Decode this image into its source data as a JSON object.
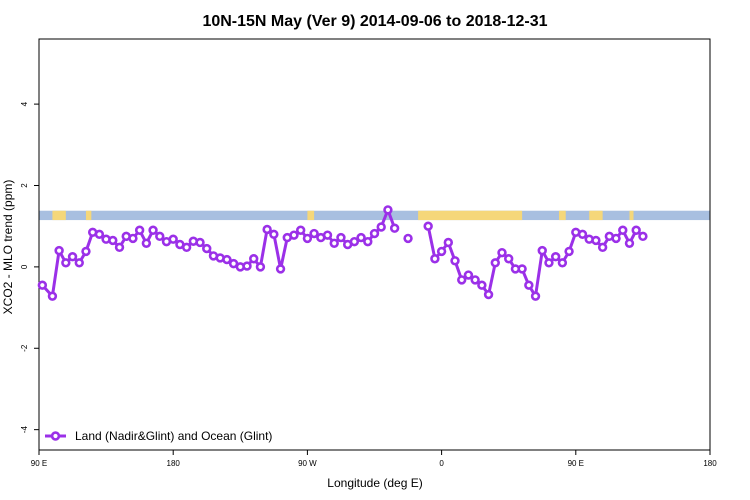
{
  "chart_data": {
    "type": "line",
    "title": "10N-15N May (Ver 9)   2014-09-06 to 2018-12-31",
    "xlabel": "Longitude (deg E)",
    "ylabel": "XCO2 - MLO trend (ppm)",
    "xlim": [
      0,
      100
    ],
    "ylim": [
      -4.5,
      5.6
    ],
    "x_ticks": [
      {
        "pos": 0,
        "label": "90 E"
      },
      {
        "pos": 20,
        "label": "180"
      },
      {
        "pos": 40,
        "label": "90 W"
      },
      {
        "pos": 60,
        "label": "0"
      },
      {
        "pos": 80,
        "label": "90 E"
      },
      {
        "pos": 100,
        "label": "180"
      }
    ],
    "y_ticks": [
      -4,
      -2,
      0,
      2,
      4
    ],
    "grid": false,
    "legend_position": "bottom-left",
    "land_band": {
      "y_range": [
        1.15,
        1.38
      ],
      "ocean_color": "#a8bfe0",
      "land_color": "#f5d77a",
      "land_segments": [
        [
          2.0,
          4.0
        ],
        [
          7.0,
          7.8
        ],
        [
          40.0,
          41.0
        ],
        [
          56.5,
          72.0
        ],
        [
          77.5,
          78.5
        ],
        [
          82.0,
          84.0
        ],
        [
          88.0,
          88.6
        ]
      ]
    },
    "series": [
      {
        "name": "Land (Nadir&Glint) and Ocean (Glint)",
        "color": "#9b30e8",
        "points": [
          [
            0.5,
            -0.45
          ],
          [
            2.0,
            -0.72
          ],
          [
            3.0,
            0.4
          ],
          [
            4.0,
            0.1
          ],
          [
            5.0,
            0.25
          ],
          [
            6.0,
            0.1
          ],
          [
            7.0,
            0.38
          ],
          [
            8.0,
            0.85
          ],
          [
            9.0,
            0.8
          ],
          [
            10.0,
            0.68
          ],
          [
            11.0,
            0.65
          ],
          [
            12.0,
            0.48
          ],
          [
            13.0,
            0.75
          ],
          [
            14.0,
            0.7
          ],
          [
            15.0,
            0.9
          ],
          [
            16.0,
            0.58
          ],
          [
            17.0,
            0.9
          ],
          [
            18.0,
            0.75
          ],
          [
            19.0,
            0.62
          ],
          [
            20.0,
            0.68
          ],
          [
            21.0,
            0.55
          ],
          [
            22.0,
            0.48
          ],
          [
            23.0,
            0.63
          ],
          [
            24.0,
            0.6
          ],
          [
            25.0,
            0.45
          ],
          [
            26.0,
            0.27
          ],
          [
            27.0,
            0.22
          ],
          [
            28.0,
            0.18
          ],
          [
            29.0,
            0.08
          ],
          [
            30.0,
            0.0
          ],
          [
            31.0,
            0.02
          ],
          [
            32.0,
            0.2
          ],
          [
            33.0,
            0.0
          ],
          [
            34.0,
            0.92
          ],
          [
            35.0,
            0.8
          ],
          [
            36.0,
            -0.05
          ],
          [
            37.0,
            0.72
          ],
          [
            38.0,
            0.78
          ],
          [
            39.0,
            0.9
          ],
          [
            40.0,
            0.7
          ],
          [
            41.0,
            0.82
          ],
          [
            42.0,
            0.72
          ],
          [
            43.0,
            0.78
          ],
          [
            44.0,
            0.58
          ],
          [
            45.0,
            0.72
          ],
          [
            46.0,
            0.55
          ],
          [
            47.0,
            0.62
          ],
          [
            48.0,
            0.72
          ],
          [
            49.0,
            0.62
          ],
          [
            50.0,
            0.82
          ],
          [
            51.0,
            0.98
          ],
          [
            52.0,
            1.4
          ],
          [
            53.0,
            0.95
          ],
          [
            55.0,
            0.7
          ],
          [
            58.0,
            1.0
          ],
          [
            59.0,
            0.2
          ],
          [
            60.0,
            0.38
          ],
          [
            61.0,
            0.6
          ],
          [
            62.0,
            0.15
          ],
          [
            63.0,
            -0.32
          ],
          [
            64.0,
            -0.2
          ],
          [
            65.0,
            -0.32
          ],
          [
            66.0,
            -0.45
          ],
          [
            67.0,
            -0.68
          ],
          [
            68.0,
            0.1
          ],
          [
            69.0,
            0.35
          ],
          [
            70.0,
            0.2
          ],
          [
            71.0,
            -0.05
          ],
          [
            72.0,
            -0.05
          ],
          [
            73.0,
            -0.45
          ],
          [
            74.0,
            -0.72
          ],
          [
            75.0,
            0.4
          ],
          [
            76.0,
            0.1
          ],
          [
            77.0,
            0.25
          ],
          [
            78.0,
            0.1
          ],
          [
            79.0,
            0.38
          ],
          [
            80.0,
            0.85
          ],
          [
            81.0,
            0.8
          ],
          [
            82.0,
            0.68
          ],
          [
            83.0,
            0.65
          ],
          [
            84.0,
            0.48
          ],
          [
            85.0,
            0.75
          ],
          [
            86.0,
            0.7
          ],
          [
            87.0,
            0.9
          ],
          [
            88.0,
            0.58
          ],
          [
            89.0,
            0.9
          ],
          [
            90.0,
            0.75
          ]
        ]
      }
    ]
  }
}
